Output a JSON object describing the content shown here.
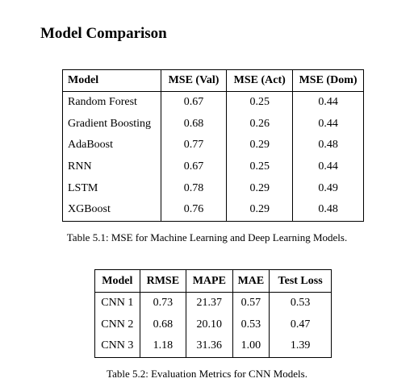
{
  "heading": "Model Comparison",
  "ml_table": {
    "columns": [
      "Model",
      "MSE (Val)",
      "MSE (Act)",
      "MSE (Dom)"
    ],
    "rows": [
      [
        "Random Forest",
        "0.67",
        "0.25",
        "0.44"
      ],
      [
        "Gradient Boosting",
        "0.68",
        "0.26",
        "0.44"
      ],
      [
        "AdaBoost",
        "0.77",
        "0.29",
        "0.48"
      ],
      [
        "RNN",
        "0.67",
        "0.25",
        "0.44"
      ],
      [
        "LSTM",
        "0.78",
        "0.29",
        "0.49"
      ],
      [
        "XGBoost",
        "0.76",
        "0.29",
        "0.48"
      ]
    ],
    "caption": "Table 5.1: MSE for Machine Learning and Deep Learning Models."
  },
  "cnn_table": {
    "columns": [
      "Model",
      "RMSE",
      "MAPE",
      "MAE",
      "Test Loss"
    ],
    "rows": [
      [
        "CNN 1",
        "0.73",
        "21.37",
        "0.57",
        "0.53"
      ],
      [
        "CNN 2",
        "0.68",
        "20.10",
        "0.53",
        "0.47"
      ],
      [
        "CNN 3",
        "1.18",
        "31.36",
        "1.00",
        "1.39"
      ]
    ],
    "caption": "Table 5.2: Evaluation Metrics for CNN Models."
  }
}
